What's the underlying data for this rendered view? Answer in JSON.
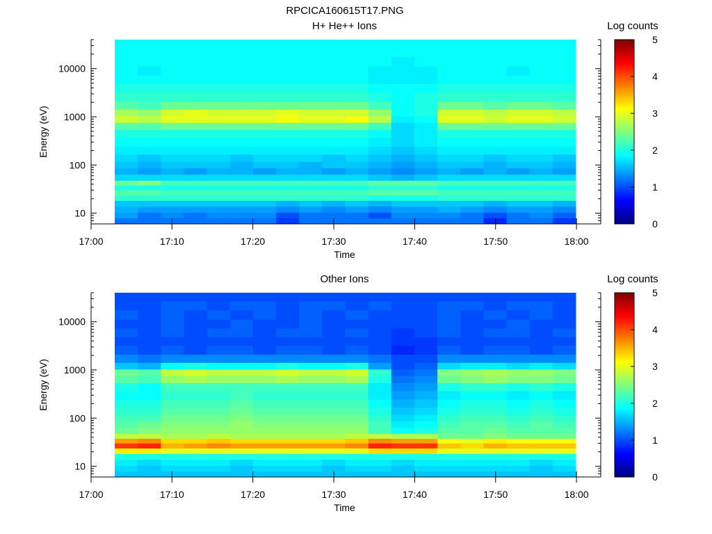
{
  "figure_title": "RPCICA160615T17.PNG",
  "chart_data": [
    {
      "type": "heatmap",
      "title": "H+ He++ Ions",
      "xlabel": "Time",
      "ylabel": "Energy (eV)",
      "y_scale": "log",
      "ylim": [
        6,
        40000
      ],
      "xlim": [
        "17:00",
        "18:03"
      ],
      "x_ticks": [
        "17:00",
        "17:10",
        "17:20",
        "17:30",
        "17:40",
        "17:50",
        "18:00"
      ],
      "y_ticks": [
        "10",
        "100",
        "1000",
        "10000"
      ],
      "colorbar": {
        "label": "Log counts",
        "range": [
          0,
          5
        ],
        "ticks": [
          "0",
          "1",
          "2",
          "3",
          "4",
          "5"
        ]
      },
      "time_bins": [
        "17:03",
        "17:06",
        "17:09",
        "17:12",
        "17:15",
        "17:18",
        "17:21",
        "17:24",
        "17:27",
        "17:30",
        "17:33",
        "17:36",
        "17:39",
        "17:42",
        "17:45",
        "17:48",
        "17:51",
        "17:54",
        "17:57",
        "18:00"
      ],
      "energy_bins_eV": [
        7,
        9,
        12,
        16,
        21,
        27,
        34,
        42,
        55,
        75,
        100,
        140,
        200,
        300,
        450,
        650,
        900,
        1200,
        1700,
        2600,
        4000,
        6000,
        9000,
        14000,
        22000,
        33000
      ],
      "values": [
        [
          1.2,
          1.2,
          1.2,
          1.2,
          1.2,
          1.2,
          1.2,
          0.9,
          1.2,
          1.2,
          1.2,
          1.2,
          1.2,
          1.2,
          1.2,
          1.2,
          0.8,
          1.2,
          1.2,
          0.9
        ],
        [
          1.4,
          1.2,
          1.3,
          1.2,
          1.3,
          1.3,
          1.3,
          1.0,
          1.2,
          1.2,
          1.2,
          1.0,
          1.3,
          1.3,
          1.3,
          1.2,
          1.0,
          1.2,
          1.3,
          1.1
        ],
        [
          1.5,
          1.4,
          1.4,
          1.4,
          1.4,
          1.4,
          1.4,
          1.3,
          1.4,
          1.3,
          1.4,
          1.3,
          1.4,
          1.4,
          1.5,
          1.4,
          1.3,
          1.4,
          1.4,
          1.3
        ],
        [
          1.6,
          1.6,
          1.6,
          1.6,
          1.6,
          1.6,
          1.6,
          1.5,
          1.6,
          1.5,
          1.6,
          1.5,
          1.6,
          1.6,
          1.6,
          1.6,
          1.5,
          1.6,
          1.6,
          1.5
        ],
        [
          2.1,
          2.1,
          2.1,
          2.1,
          2.1,
          2.1,
          2.1,
          2.1,
          2.1,
          2.1,
          2.1,
          2.0,
          2.0,
          2.0,
          2.1,
          2.1,
          2.1,
          2.1,
          2.1,
          2.1
        ],
        [
          2.3,
          2.3,
          2.2,
          2.2,
          2.2,
          2.2,
          2.2,
          2.2,
          2.2,
          2.2,
          2.2,
          2.3,
          2.3,
          2.3,
          2.2,
          2.2,
          2.2,
          2.2,
          2.2,
          2.2
        ],
        [
          2.0,
          2.0,
          2.0,
          2.0,
          2.0,
          2.0,
          2.0,
          2.0,
          2.0,
          2.0,
          2.0,
          2.1,
          2.1,
          2.1,
          2.0,
          2.0,
          2.0,
          2.0,
          2.0,
          2.0
        ],
        [
          2.4,
          2.5,
          2.2,
          2.2,
          2.2,
          2.2,
          2.2,
          2.2,
          2.2,
          2.2,
          2.2,
          2.3,
          2.3,
          2.3,
          2.2,
          2.2,
          2.2,
          2.2,
          2.2,
          2.2
        ],
        [
          1.7,
          1.7,
          1.7,
          1.7,
          1.7,
          1.7,
          1.7,
          1.7,
          1.7,
          1.7,
          1.7,
          1.6,
          1.5,
          1.6,
          1.7,
          1.7,
          1.7,
          1.7,
          1.7,
          1.7
        ],
        [
          1.5,
          1.4,
          1.5,
          1.4,
          1.5,
          1.5,
          1.4,
          1.5,
          1.5,
          1.4,
          1.5,
          1.4,
          1.3,
          1.4,
          1.5,
          1.4,
          1.5,
          1.4,
          1.5,
          1.4
        ],
        [
          1.6,
          1.5,
          1.6,
          1.6,
          1.6,
          1.5,
          1.6,
          1.6,
          1.5,
          1.6,
          1.6,
          1.5,
          1.4,
          1.5,
          1.6,
          1.6,
          1.5,
          1.6,
          1.6,
          1.5
        ],
        [
          1.7,
          1.6,
          1.7,
          1.7,
          1.7,
          1.6,
          1.7,
          1.7,
          1.7,
          1.6,
          1.7,
          1.6,
          1.5,
          1.6,
          1.7,
          1.7,
          1.6,
          1.7,
          1.7,
          1.6
        ],
        [
          1.8,
          1.8,
          1.8,
          1.8,
          1.8,
          1.8,
          1.8,
          1.8,
          1.8,
          1.8,
          1.8,
          1.7,
          1.6,
          1.7,
          1.8,
          1.8,
          1.8,
          1.8,
          1.8,
          1.8
        ],
        [
          1.9,
          1.9,
          1.9,
          1.9,
          1.9,
          1.9,
          1.9,
          1.9,
          1.9,
          1.9,
          1.9,
          1.8,
          1.7,
          1.8,
          1.9,
          1.9,
          1.9,
          1.9,
          1.9,
          1.9
        ],
        [
          2.0,
          2.0,
          2.0,
          2.0,
          2.0,
          2.0,
          2.0,
          2.0,
          2.0,
          2.0,
          2.0,
          1.9,
          1.7,
          1.8,
          2.0,
          2.0,
          2.0,
          2.0,
          2.0,
          2.0
        ],
        [
          2.3,
          2.3,
          2.4,
          2.4,
          2.4,
          2.4,
          2.4,
          2.4,
          2.4,
          2.4,
          2.4,
          2.2,
          1.7,
          1.8,
          2.4,
          2.4,
          2.4,
          2.4,
          2.4,
          2.4
        ],
        [
          2.9,
          2.8,
          3.0,
          3.0,
          3.0,
          3.0,
          3.0,
          3.1,
          3.0,
          3.0,
          3.1,
          2.8,
          1.8,
          1.9,
          3.0,
          3.0,
          2.9,
          3.0,
          3.0,
          2.9
        ],
        [
          2.7,
          2.6,
          2.9,
          3.0,
          2.9,
          2.9,
          2.9,
          3.0,
          2.9,
          2.9,
          2.9,
          2.6,
          1.9,
          2.0,
          2.9,
          2.9,
          2.8,
          2.9,
          2.9,
          2.8
        ],
        [
          2.3,
          2.2,
          2.4,
          2.4,
          2.4,
          2.4,
          2.4,
          2.4,
          2.4,
          2.4,
          2.4,
          2.2,
          1.9,
          2.0,
          2.4,
          2.4,
          2.3,
          2.4,
          2.4,
          2.3
        ],
        [
          2.1,
          2.1,
          2.1,
          2.1,
          2.1,
          2.1,
          2.1,
          2.1,
          2.1,
          2.1,
          2.1,
          2.0,
          1.9,
          2.0,
          2.1,
          2.1,
          2.1,
          2.1,
          2.1,
          2.1
        ],
        [
          2.0,
          2.0,
          2.0,
          2.0,
          2.0,
          2.0,
          2.0,
          2.0,
          2.0,
          2.0,
          2.0,
          1.9,
          1.9,
          1.9,
          2.0,
          2.0,
          2.0,
          2.0,
          2.0,
          2.0
        ],
        [
          1.9,
          1.9,
          1.9,
          1.9,
          1.9,
          1.9,
          1.9,
          1.9,
          1.9,
          1.9,
          1.9,
          1.8,
          1.8,
          1.8,
          1.9,
          1.9,
          1.9,
          1.9,
          1.9,
          1.9
        ],
        [
          1.9,
          1.8,
          1.9,
          1.9,
          1.9,
          1.9,
          1.9,
          1.9,
          1.9,
          1.9,
          1.9,
          1.8,
          1.8,
          1.8,
          1.9,
          1.9,
          1.9,
          1.8,
          1.9,
          1.9
        ],
        [
          1.9,
          1.9,
          1.9,
          1.9,
          1.9,
          1.9,
          1.9,
          1.9,
          1.9,
          1.9,
          1.9,
          1.9,
          1.8,
          1.9,
          1.9,
          1.9,
          1.9,
          1.9,
          1.9,
          1.9
        ],
        [
          1.9,
          1.9,
          1.9,
          1.9,
          1.9,
          1.9,
          1.9,
          1.9,
          1.9,
          1.9,
          1.9,
          1.9,
          1.9,
          1.9,
          1.9,
          1.9,
          1.9,
          1.9,
          1.9,
          1.9
        ],
        [
          1.9,
          1.9,
          1.9,
          1.9,
          1.9,
          1.9,
          1.9,
          1.9,
          1.9,
          1.9,
          1.9,
          1.9,
          1.9,
          1.9,
          1.9,
          1.9,
          1.9,
          1.9,
          1.9,
          1.9
        ]
      ]
    },
    {
      "type": "heatmap",
      "title": "Other Ions",
      "xlabel": "Time",
      "ylabel": "Energy (eV)",
      "y_scale": "log",
      "ylim": [
        6,
        40000
      ],
      "xlim": [
        "17:00",
        "18:03"
      ],
      "x_ticks": [
        "17:00",
        "17:10",
        "17:20",
        "17:30",
        "17:40",
        "17:50",
        "18:00"
      ],
      "y_ticks": [
        "10",
        "100",
        "1000",
        "10000"
      ],
      "colorbar": {
        "label": "Log counts",
        "range": [
          0,
          5
        ],
        "ticks": [
          "0",
          "1",
          "2",
          "3",
          "4",
          "5"
        ]
      },
      "time_bins": [
        "17:03",
        "17:06",
        "17:09",
        "17:12",
        "17:15",
        "17:18",
        "17:21",
        "17:24",
        "17:27",
        "17:30",
        "17:33",
        "17:36",
        "17:39",
        "17:42",
        "17:45",
        "17:48",
        "17:51",
        "17:54",
        "17:57",
        "18:00"
      ],
      "energy_bins_eV": [
        7,
        9,
        12,
        16,
        21,
        27,
        34,
        42,
        55,
        75,
        100,
        140,
        200,
        300,
        450,
        650,
        900,
        1200,
        1700,
        2600,
        4000,
        6000,
        9000,
        14000,
        22000,
        33000
      ],
      "values": [
        [
          1.6,
          1.6,
          1.6,
          1.6,
          1.6,
          1.6,
          1.6,
          1.6,
          1.6,
          1.6,
          1.6,
          1.6,
          1.6,
          1.6,
          1.6,
          1.6,
          1.6,
          1.6,
          1.6,
          1.6
        ],
        [
          1.7,
          1.6,
          1.7,
          1.7,
          1.7,
          1.6,
          1.7,
          1.7,
          1.7,
          1.6,
          1.7,
          1.7,
          1.6,
          1.7,
          1.7,
          1.7,
          1.7,
          1.7,
          1.6,
          1.7
        ],
        [
          1.8,
          1.7,
          1.8,
          1.8,
          1.8,
          1.7,
          1.8,
          1.8,
          1.8,
          1.7,
          1.8,
          1.8,
          1.7,
          1.8,
          1.8,
          1.8,
          1.8,
          1.8,
          1.7,
          1.8
        ],
        [
          2.0,
          2.0,
          2.0,
          2.0,
          2.0,
          2.0,
          2.0,
          2.0,
          2.0,
          2.0,
          2.0,
          2.0,
          2.0,
          2.0,
          2.0,
          2.0,
          2.0,
          2.0,
          2.0,
          2.0
        ],
        [
          3.2,
          3.2,
          3.0,
          3.0,
          3.0,
          3.0,
          3.0,
          3.0,
          3.0,
          3.0,
          3.0,
          3.3,
          3.3,
          3.3,
          3.0,
          3.0,
          3.0,
          3.0,
          3.0,
          3.0
        ],
        [
          4.1,
          4.2,
          3.5,
          3.6,
          3.7,
          3.6,
          3.6,
          3.6,
          3.6,
          3.6,
          3.7,
          4.2,
          4.1,
          4.1,
          3.4,
          3.3,
          3.5,
          3.4,
          3.4,
          3.4
        ],
        [
          3.6,
          3.7,
          3.3,
          3.3,
          3.4,
          3.3,
          3.3,
          3.3,
          3.3,
          3.3,
          3.4,
          3.7,
          3.6,
          3.6,
          3.1,
          3.0,
          3.2,
          3.1,
          3.1,
          3.1
        ],
        [
          2.8,
          2.8,
          2.7,
          2.7,
          2.8,
          2.7,
          2.7,
          2.7,
          2.7,
          2.7,
          2.8,
          2.8,
          2.7,
          2.7,
          2.4,
          2.4,
          2.5,
          2.4,
          2.4,
          2.4
        ],
        [
          2.4,
          2.5,
          2.6,
          2.6,
          2.6,
          2.6,
          2.6,
          2.6,
          2.6,
          2.6,
          2.6,
          2.2,
          1.9,
          2.0,
          2.3,
          2.3,
          2.4,
          2.3,
          2.3,
          2.3
        ],
        [
          2.3,
          2.4,
          2.5,
          2.5,
          2.5,
          2.6,
          2.5,
          2.5,
          2.5,
          2.5,
          2.5,
          2.2,
          1.8,
          1.9,
          2.2,
          2.3,
          2.3,
          2.2,
          2.3,
          2.2
        ],
        [
          2.2,
          2.2,
          2.4,
          2.4,
          2.4,
          2.5,
          2.4,
          2.4,
          2.4,
          2.4,
          2.4,
          2.1,
          1.7,
          1.8,
          2.1,
          2.2,
          2.2,
          2.1,
          2.2,
          2.1
        ],
        [
          2.1,
          2.1,
          2.3,
          2.3,
          2.3,
          2.4,
          2.3,
          2.3,
          2.3,
          2.3,
          2.3,
          2.0,
          1.6,
          1.7,
          2.0,
          2.1,
          2.1,
          2.0,
          2.1,
          2.0
        ],
        [
          2.0,
          2.0,
          2.2,
          2.2,
          2.2,
          2.3,
          2.2,
          2.2,
          2.2,
          2.2,
          2.2,
          1.9,
          1.5,
          1.6,
          1.9,
          2.0,
          2.0,
          1.9,
          2.0,
          1.9
        ],
        [
          1.9,
          1.9,
          2.1,
          2.1,
          2.1,
          2.2,
          2.1,
          2.1,
          2.1,
          2.1,
          2.1,
          1.8,
          1.4,
          1.5,
          1.8,
          1.9,
          1.9,
          1.8,
          1.9,
          1.8
        ],
        [
          2.0,
          1.9,
          2.2,
          2.2,
          2.2,
          2.2,
          2.2,
          2.2,
          2.2,
          2.2,
          2.2,
          1.8,
          1.3,
          1.4,
          2.0,
          2.1,
          2.1,
          2.0,
          2.1,
          2.0
        ],
        [
          2.3,
          2.2,
          2.6,
          2.7,
          2.6,
          2.6,
          2.6,
          2.7,
          2.6,
          2.6,
          2.7,
          2.0,
          1.2,
          1.3,
          2.4,
          2.5,
          2.6,
          2.5,
          2.5,
          2.4
        ],
        [
          2.4,
          2.3,
          2.8,
          2.9,
          2.8,
          2.8,
          2.8,
          2.9,
          2.8,
          2.8,
          2.9,
          2.1,
          1.1,
          1.2,
          2.5,
          2.6,
          2.7,
          2.6,
          2.6,
          2.5
        ],
        [
          1.6,
          1.5,
          1.9,
          2.0,
          1.9,
          1.9,
          1.9,
          2.0,
          1.9,
          1.9,
          2.0,
          1.4,
          1.0,
          1.1,
          1.7,
          1.8,
          1.8,
          1.7,
          1.8,
          1.7
        ],
        [
          1.3,
          1.2,
          1.3,
          1.3,
          1.3,
          1.3,
          1.3,
          1.3,
          1.3,
          1.3,
          1.3,
          1.2,
          1.0,
          1.0,
          1.3,
          1.3,
          1.3,
          1.3,
          1.3,
          1.3
        ],
        [
          1.1,
          1.0,
          1.1,
          1.0,
          1.1,
          1.1,
          1.0,
          1.1,
          1.1,
          1.0,
          1.1,
          1.0,
          0.8,
          0.9,
          1.1,
          1.0,
          1.1,
          1.1,
          1.0,
          1.1
        ],
        [
          1.0,
          1.0,
          1.0,
          1.0,
          1.0,
          1.0,
          1.0,
          1.0,
          1.0,
          1.0,
          1.0,
          1.0,
          0.9,
          0.9,
          1.0,
          1.0,
          1.0,
          1.0,
          1.0,
          1.0
        ],
        [
          1.1,
          1.0,
          1.1,
          1.0,
          1.1,
          1.1,
          1.0,
          1.1,
          1.1,
          1.0,
          1.1,
          1.0,
          0.9,
          1.0,
          1.1,
          1.0,
          1.1,
          1.1,
          1.0,
          1.1
        ],
        [
          1.0,
          1.0,
          1.1,
          1.0,
          1.0,
          1.1,
          1.0,
          1.0,
          1.1,
          1.0,
          1.0,
          1.0,
          1.0,
          1.0,
          1.1,
          1.0,
          1.0,
          1.1,
          1.0,
          1.0
        ],
        [
          1.1,
          1.0,
          1.1,
          1.0,
          1.1,
          1.0,
          1.1,
          1.0,
          1.1,
          1.0,
          1.1,
          1.0,
          1.0,
          1.0,
          1.1,
          1.0,
          1.1,
          1.0,
          1.1,
          1.0
        ],
        [
          1.0,
          1.0,
          1.1,
          1.1,
          1.0,
          1.1,
          1.1,
          1.0,
          1.1,
          1.1,
          1.0,
          1.1,
          1.0,
          1.0,
          1.1,
          1.1,
          1.0,
          1.1,
          1.1,
          1.0
        ],
        [
          1.0,
          1.0,
          1.0,
          1.0,
          1.0,
          1.0,
          1.0,
          1.0,
          1.0,
          1.0,
          1.0,
          1.0,
          1.0,
          1.0,
          1.0,
          1.0,
          1.0,
          1.0,
          1.0,
          1.0
        ]
      ]
    }
  ]
}
